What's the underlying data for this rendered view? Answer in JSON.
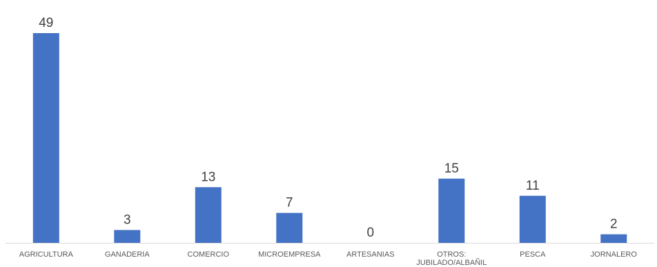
{
  "chart_data": {
    "type": "bar",
    "categories": [
      "AGRICULTURA",
      "GANADERIA",
      "COMERCIO",
      "MICROEMPRESA",
      "ARTESANIAS",
      "OTROS:\nJUBILADO/ALBAÑIL",
      "PESCA",
      "JORNALERO"
    ],
    "values": [
      49,
      3,
      13,
      7,
      0,
      15,
      11,
      2
    ],
    "title": "",
    "xlabel": "",
    "ylabel": "",
    "ylim": [
      0,
      49
    ],
    "grid": false,
    "legend": "none",
    "data_labels": true
  },
  "colors": {
    "bar": "#4472C4",
    "axis": "#D9D9D9",
    "value_text": "#404040",
    "category_text": "#595959"
  }
}
